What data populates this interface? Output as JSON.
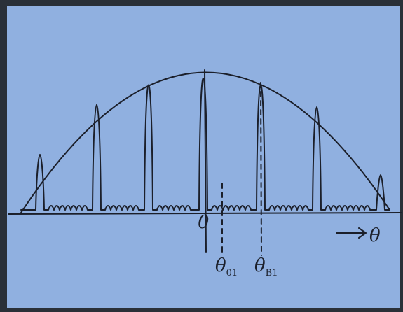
{
  "labels": {
    "origin": "0",
    "theta_01": {
      "main": "θ",
      "sub": "01"
    },
    "theta_b1": {
      "main": "θ",
      "sub": "B1"
    },
    "axis": "θ"
  }
}
